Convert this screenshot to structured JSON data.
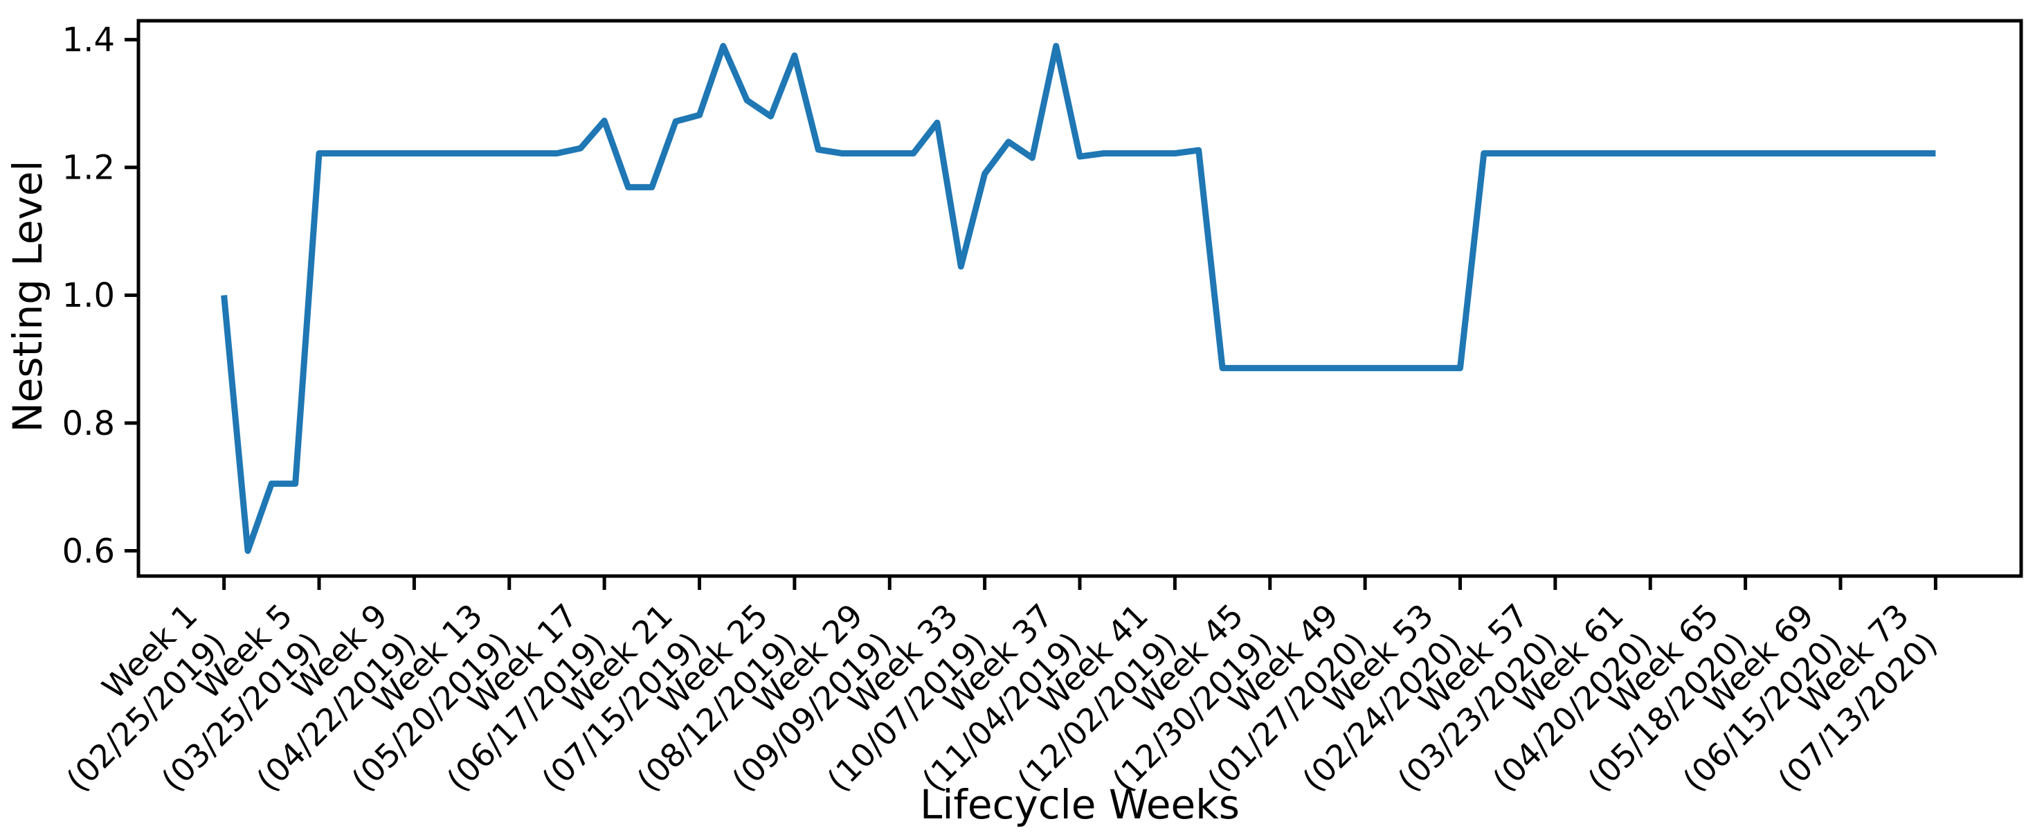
{
  "figure": {
    "background": "#ffffff",
    "spine_color": "#000000",
    "text_color": "#000000"
  },
  "chart_data": {
    "type": "line",
    "title": "",
    "xlabel": "Lifecycle Weeks",
    "ylabel": "Nesting Level",
    "grid": false,
    "legend": "none",
    "line_color": "#1f77b4",
    "xlim": [
      -2.6,
      76.6
    ],
    "ylim": [
      0.5605,
      1.4295
    ],
    "x": [
      1,
      2,
      3,
      4,
      5,
      6,
      7,
      8,
      9,
      10,
      11,
      12,
      13,
      14,
      15,
      16,
      17,
      18,
      19,
      20,
      21,
      22,
      23,
      24,
      25,
      26,
      27,
      28,
      29,
      30,
      31,
      32,
      33,
      34,
      35,
      36,
      37,
      38,
      39,
      40,
      41,
      42,
      43,
      44,
      45,
      46,
      47,
      48,
      49,
      50,
      51,
      52,
      53,
      54,
      55,
      56,
      57,
      58,
      59,
      60,
      61,
      62,
      63,
      64,
      65,
      66,
      67,
      68,
      69,
      70,
      71,
      72,
      73
    ],
    "values": [
      1.0,
      0.6,
      0.705,
      0.705,
      1.222,
      1.222,
      1.222,
      1.222,
      1.222,
      1.222,
      1.222,
      1.222,
      1.222,
      1.222,
      1.222,
      1.23,
      1.273,
      1.169,
      1.169,
      1.272,
      1.282,
      1.39,
      1.305,
      1.28,
      1.375,
      1.228,
      1.222,
      1.222,
      1.222,
      1.222,
      1.27,
      1.045,
      1.19,
      1.24,
      1.215,
      1.39,
      1.217,
      1.222,
      1.222,
      1.222,
      1.222,
      1.227,
      0.886,
      0.886,
      0.886,
      0.886,
      0.886,
      0.886,
      0.886,
      0.886,
      0.886,
      0.886,
      0.886,
      1.222,
      1.222,
      1.222,
      1.222,
      1.222,
      1.222,
      1.222,
      1.222,
      1.222,
      1.222,
      1.222,
      1.222,
      1.222,
      1.222,
      1.222,
      1.222,
      1.222,
      1.222,
      1.222,
      1.222
    ],
    "yticks": [
      0.6,
      0.8,
      1.0,
      1.2,
      1.4
    ],
    "ytick_labels": [
      "0.6",
      "0.8",
      "1.0",
      "1.2",
      "1.4"
    ],
    "xticks": [
      {
        "week": 1,
        "line1": "Week 1",
        "line2": "(02/25/2019)"
      },
      {
        "week": 5,
        "line1": "Week 5",
        "line2": "(03/25/2019)"
      },
      {
        "week": 9,
        "line1": "Week 9",
        "line2": "(04/22/2019)"
      },
      {
        "week": 13,
        "line1": "Week 13",
        "line2": "(05/20/2019)"
      },
      {
        "week": 17,
        "line1": "Week 17",
        "line2": "(06/17/2019)"
      },
      {
        "week": 21,
        "line1": "Week 21",
        "line2": "(07/15/2019)"
      },
      {
        "week": 25,
        "line1": "Week 25",
        "line2": "(08/12/2019)"
      },
      {
        "week": 29,
        "line1": "Week 29",
        "line2": "(09/09/2019)"
      },
      {
        "week": 33,
        "line1": "Week 33",
        "line2": "(10/07/2019)"
      },
      {
        "week": 37,
        "line1": "Week 37",
        "line2": "(11/04/2019)"
      },
      {
        "week": 41,
        "line1": "Week 41",
        "line2": "(12/02/2019)"
      },
      {
        "week": 45,
        "line1": "Week 45",
        "line2": "(12/30/2019)"
      },
      {
        "week": 49,
        "line1": "Week 49",
        "line2": "(01/27/2020)"
      },
      {
        "week": 53,
        "line1": "Week 53",
        "line2": "(02/24/2020)"
      },
      {
        "week": 57,
        "line1": "Week 57",
        "line2": "(03/23/2020)"
      },
      {
        "week": 61,
        "line1": "Week 61",
        "line2": "(04/20/2020)"
      },
      {
        "week": 65,
        "line1": "Week 65",
        "line2": "(05/18/2020)"
      },
      {
        "week": 69,
        "line1": "Week 69",
        "line2": "(06/15/2020)"
      },
      {
        "week": 73,
        "line1": "Week 73",
        "line2": "(07/13/2020)"
      }
    ]
  }
}
